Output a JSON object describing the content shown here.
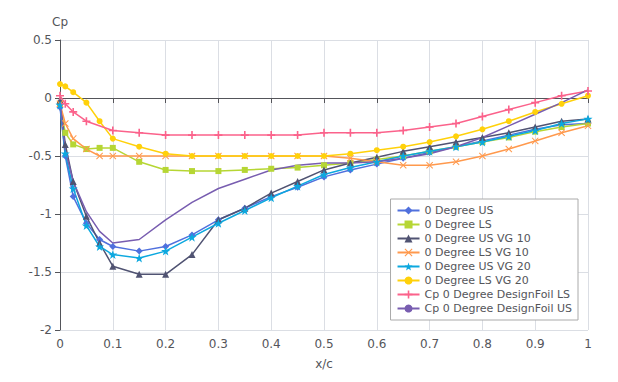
{
  "chart_data": {
    "type": "line",
    "title": "",
    "xlabel": "x/c",
    "ylabel": "Cp",
    "xlim": [
      0,
      1.0
    ],
    "ylim": [
      -2.0,
      0.5
    ],
    "xticks": [
      0,
      0.1,
      0.2,
      0.3,
      0.4,
      0.5,
      0.6,
      0.7,
      0.8,
      0.9,
      1.0
    ],
    "yticks": [
      0.5,
      0,
      -0.5,
      -1.0,
      -1.5,
      -2.0
    ],
    "grid": true,
    "legend": "lower right",
    "series": [
      {
        "name": "0 Degree US",
        "marker": "diamond",
        "x": [
          0.0,
          0.01,
          0.025,
          0.05,
          0.075,
          0.1,
          0.15,
          0.2,
          0.25,
          0.3,
          0.35,
          0.4,
          0.45,
          0.5,
          0.55,
          0.6,
          0.65,
          0.7,
          0.75,
          0.8,
          0.85,
          0.9,
          0.95,
          1.0
        ],
        "values": [
          -0.08,
          -0.5,
          -0.85,
          -1.08,
          -1.22,
          -1.28,
          -1.32,
          -1.28,
          -1.18,
          -1.05,
          -0.95,
          -0.85,
          -0.77,
          -0.68,
          -0.62,
          -0.57,
          -0.52,
          -0.47,
          -0.42,
          -0.37,
          -0.32,
          -0.27,
          -0.23,
          -0.22
        ]
      },
      {
        "name": "0 Degree LS",
        "marker": "square",
        "x": [
          0.0,
          0.01,
          0.025,
          0.05,
          0.075,
          0.1,
          0.15,
          0.2,
          0.25,
          0.3,
          0.35,
          0.4,
          0.45,
          0.5,
          0.55,
          0.6,
          0.65,
          0.7,
          0.75,
          0.8,
          0.85,
          0.9,
          0.95,
          1.0
        ],
        "values": [
          -0.05,
          -0.3,
          -0.4,
          -0.44,
          -0.43,
          -0.43,
          -0.55,
          -0.62,
          -0.63,
          -0.63,
          -0.62,
          -0.61,
          -0.6,
          -0.58,
          -0.56,
          -0.53,
          -0.5,
          -0.46,
          -0.42,
          -0.38,
          -0.34,
          -0.29,
          -0.25,
          -0.22
        ]
      },
      {
        "name": "0 Degree US VG 10",
        "marker": "triangle",
        "x": [
          0.0,
          0.01,
          0.025,
          0.05,
          0.075,
          0.1,
          0.15,
          0.2,
          0.25,
          0.3,
          0.35,
          0.4,
          0.45,
          0.5,
          0.55,
          0.6,
          0.65,
          0.7,
          0.75,
          0.8,
          0.85,
          0.9,
          0.95,
          1.0
        ],
        "values": [
          -0.02,
          -0.4,
          -0.72,
          -1.02,
          -1.25,
          -1.45,
          -1.52,
          -1.52,
          -1.35,
          -1.05,
          -0.95,
          -0.82,
          -0.72,
          -0.62,
          -0.56,
          -0.51,
          -0.46,
          -0.42,
          -0.38,
          -0.34,
          -0.3,
          -0.25,
          -0.2,
          -0.18
        ]
      },
      {
        "name": "0 Degree LS VG 10",
        "marker": "x",
        "x": [
          0.0,
          0.01,
          0.025,
          0.05,
          0.075,
          0.1,
          0.15,
          0.2,
          0.25,
          0.3,
          0.35,
          0.4,
          0.45,
          0.5,
          0.55,
          0.6,
          0.65,
          0.7,
          0.75,
          0.8,
          0.85,
          0.9,
          0.95,
          1.0
        ],
        "values": [
          -0.05,
          -0.22,
          -0.35,
          -0.44,
          -0.5,
          -0.5,
          -0.5,
          -0.5,
          -0.5,
          -0.5,
          -0.5,
          -0.5,
          -0.5,
          -0.5,
          -0.52,
          -0.55,
          -0.58,
          -0.58,
          -0.55,
          -0.5,
          -0.44,
          -0.37,
          -0.3,
          -0.24
        ]
      },
      {
        "name": "0 Degree US VG 20",
        "marker": "star",
        "x": [
          0.0,
          0.01,
          0.025,
          0.05,
          0.075,
          0.1,
          0.15,
          0.2,
          0.25,
          0.3,
          0.35,
          0.4,
          0.45,
          0.5,
          0.55,
          0.6,
          0.65,
          0.7,
          0.75,
          0.8,
          0.85,
          0.9,
          0.95,
          1.0
        ],
        "values": [
          -0.06,
          -0.48,
          -0.78,
          -1.1,
          -1.28,
          -1.35,
          -1.38,
          -1.32,
          -1.2,
          -1.08,
          -0.97,
          -0.86,
          -0.76,
          -0.66,
          -0.6,
          -0.55,
          -0.5,
          -0.46,
          -0.42,
          -0.38,
          -0.33,
          -0.28,
          -0.22,
          -0.18
        ]
      },
      {
        "name": "0 Degree LS VG 20",
        "marker": "circle",
        "x": [
          0.0,
          0.01,
          0.025,
          0.05,
          0.075,
          0.1,
          0.15,
          0.2,
          0.25,
          0.3,
          0.35,
          0.4,
          0.45,
          0.5,
          0.55,
          0.6,
          0.65,
          0.7,
          0.75,
          0.8,
          0.85,
          0.9,
          0.95,
          1.0
        ],
        "values": [
          0.12,
          0.1,
          0.05,
          -0.04,
          -0.2,
          -0.35,
          -0.42,
          -0.48,
          -0.5,
          -0.5,
          -0.5,
          -0.5,
          -0.5,
          -0.5,
          -0.48,
          -0.45,
          -0.42,
          -0.38,
          -0.33,
          -0.27,
          -0.2,
          -0.12,
          -0.05,
          0.02
        ]
      },
      {
        "name": "Cp 0 Degree DesignFoil LS",
        "marker": "plus",
        "x": [
          0.0,
          0.01,
          0.025,
          0.05,
          0.1,
          0.15,
          0.2,
          0.25,
          0.3,
          0.35,
          0.4,
          0.45,
          0.5,
          0.55,
          0.6,
          0.65,
          0.7,
          0.75,
          0.8,
          0.85,
          0.9,
          0.95,
          1.0
        ],
        "values": [
          0.02,
          -0.05,
          -0.12,
          -0.2,
          -0.28,
          -0.3,
          -0.32,
          -0.32,
          -0.32,
          -0.32,
          -0.32,
          -0.32,
          -0.3,
          -0.3,
          -0.3,
          -0.28,
          -0.25,
          -0.22,
          -0.16,
          -0.1,
          -0.04,
          0.02,
          0.06
        ]
      },
      {
        "name": "Cp 0 Degree DesignFoil US",
        "marker": "none",
        "x": [
          0.0,
          0.01,
          0.025,
          0.05,
          0.075,
          0.1,
          0.15,
          0.2,
          0.25,
          0.3,
          0.35,
          0.4,
          0.45,
          0.5,
          0.55,
          0.6,
          0.65,
          0.7,
          0.75,
          0.8,
          0.85,
          0.9,
          0.95,
          1.0
        ],
        "values": [
          -0.03,
          -0.45,
          -0.72,
          -0.98,
          -1.15,
          -1.25,
          -1.22,
          -1.05,
          -0.9,
          -0.78,
          -0.7,
          -0.62,
          -0.58,
          -0.56,
          -0.56,
          -0.55,
          -0.52,
          -0.48,
          -0.42,
          -0.34,
          -0.24,
          -0.14,
          -0.04,
          0.07
        ]
      }
    ]
  }
}
